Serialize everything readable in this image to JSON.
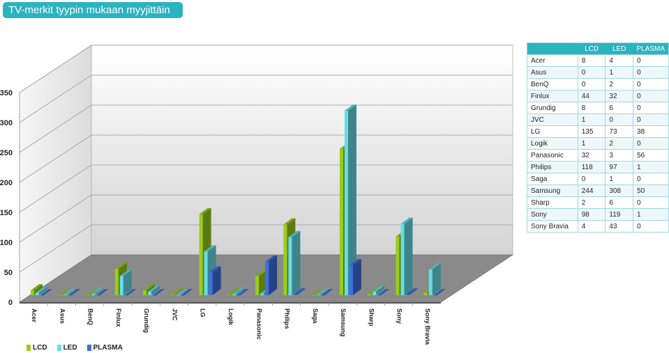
{
  "title": "TV-merkit tyypin mukaan myyjittäin",
  "colors": {
    "LCD": "#9acd1a",
    "LED": "#66dde8",
    "PLASMA": "#3f6fe0",
    "header": "#2bb3c0"
  },
  "table": {
    "headers": [
      "",
      "LCD",
      "LED",
      "PLASMA"
    ]
  },
  "chart_data": {
    "type": "bar",
    "categories": [
      "Acer",
      "Asus",
      "BenQ",
      "Finlux",
      "Grundig",
      "JVC",
      "LG",
      "Logik",
      "Panasonic",
      "Philips",
      "Saga",
      "Samsung",
      "Sharp",
      "Sony",
      "Sony Bravia"
    ],
    "series": [
      {
        "name": "LCD",
        "values": [
          8,
          0,
          0,
          44,
          8,
          1,
          135,
          1,
          32,
          118,
          0,
          244,
          2,
          98,
          4
        ]
      },
      {
        "name": "LED",
        "values": [
          4,
          1,
          2,
          32,
          6,
          0,
          73,
          2,
          3,
          97,
          1,
          308,
          6,
          119,
          43
        ]
      },
      {
        "name": "PLASMA",
        "values": [
          0,
          0,
          0,
          0,
          0,
          0,
          38,
          0,
          56,
          1,
          0,
          50,
          0,
          1,
          0
        ]
      }
    ],
    "yticks": [
      "0",
      "50",
      "100",
      "150",
      "200",
      "250",
      "300",
      "350"
    ],
    "ylim": [
      0,
      350
    ],
    "grid": true,
    "legend": "bottom-left",
    "xlabel": "",
    "ylabel": ""
  }
}
